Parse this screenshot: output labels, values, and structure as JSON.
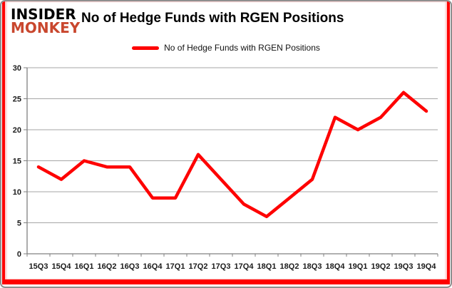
{
  "logo": {
    "line1": "INSIDER",
    "line2": "MONKEY"
  },
  "title": "No of Hedge Funds with RGEN Positions",
  "legend": {
    "label": "No of Hedge Funds with RGEN Positions"
  },
  "colors": {
    "series": "#fe0000",
    "logo_red": "#c9472e",
    "border_red": "#fe0000",
    "gridline": "#a6a6a6",
    "axis": "#808080",
    "tick_text": "#1a1a1a"
  },
  "chart_data": {
    "type": "line",
    "title": "No of Hedge Funds with RGEN Positions",
    "categories": [
      "15Q3",
      "15Q4",
      "16Q1",
      "16Q2",
      "16Q3",
      "16Q4",
      "17Q1",
      "17Q2",
      "17Q3",
      "17Q4",
      "18Q1",
      "18Q2",
      "18Q3",
      "18Q4",
      "19Q1",
      "19Q2",
      "19Q3",
      "19Q4"
    ],
    "series": [
      {
        "name": "No of Hedge Funds with RGEN Positions",
        "values": [
          14,
          12,
          15,
          14,
          14,
          9,
          9,
          16,
          12,
          8,
          6,
          9,
          12,
          22,
          20,
          22,
          26,
          23
        ]
      }
    ],
    "xlabel": "",
    "ylabel": "",
    "ylim": [
      0,
      30
    ],
    "y_ticks": [
      0,
      5,
      10,
      15,
      20,
      25,
      30
    ],
    "grid": true,
    "legend_position": "top"
  }
}
